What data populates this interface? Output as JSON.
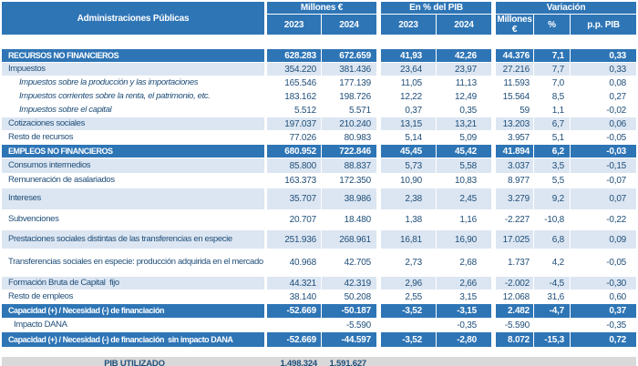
{
  "colors": {
    "header_blue": "#2e75b6",
    "shaded_row": "#dce6f2",
    "text_navy": "#1f4e79",
    "footer_gray": "#d9d9d9"
  },
  "header": {
    "label_col": "Administraciones Públicas",
    "groups": [
      {
        "label": "Millones €",
        "cols": [
          "2023",
          "2024"
        ]
      },
      {
        "label": "En % del PIB",
        "cols": [
          "2023",
          "2024"
        ]
      },
      {
        "label": "Variación",
        "cols": [
          "Millones €",
          "%",
          "p.p. PIB"
        ]
      }
    ]
  },
  "rows": [
    {
      "label": "RECURSOS NO FINANCIEROS",
      "style": "section",
      "shaded": false,
      "size": "",
      "values": [
        "628.283",
        "672.659",
        "41,93",
        "42,26",
        "44.376",
        "7,1",
        "0,33"
      ]
    },
    {
      "label": "Impuestos",
      "style": "item",
      "shaded": true,
      "size": "",
      "values": [
        "354.220",
        "381.436",
        "23,64",
        "23,97",
        "27.216",
        "7,7",
        "0,33"
      ]
    },
    {
      "label": "Impuestos sobre la producción y las importaciones",
      "style": "sub",
      "shaded": false,
      "size": "",
      "values": [
        "165.546",
        "177.139",
        "11,05",
        "11,13",
        "11.593",
        "7,0",
        "0,08"
      ]
    },
    {
      "label": "Impuestos corrientes sobre la renta, el patrimonio, etc.",
      "style": "sub",
      "shaded": false,
      "size": "",
      "values": [
        "183.162",
        "198.726",
        "12,22",
        "12,49",
        "15.564",
        "8,5",
        "0,27"
      ]
    },
    {
      "label": "Impuestos sobre el capital",
      "style": "sub",
      "shaded": false,
      "size": "",
      "values": [
        "5.512",
        "5.571",
        "0,37",
        "0,35",
        "59",
        "1,1",
        "-0,02"
      ]
    },
    {
      "label": "Cotizaciones sociales",
      "style": "item",
      "shaded": true,
      "size": "",
      "values": [
        "197.037",
        "210.240",
        "13,15",
        "13,21",
        "13.203",
        "6,7",
        "0,06"
      ]
    },
    {
      "label": "Resto de recursos",
      "style": "item",
      "shaded": false,
      "size": "",
      "values": [
        "77.026",
        "80.983",
        "5,14",
        "5,09",
        "3.957",
        "5,1",
        "-0,05"
      ]
    },
    {
      "label": "EMPLEOS NO FINANCIEROS",
      "style": "section",
      "shaded": false,
      "size": "",
      "values": [
        "680.952",
        "722.846",
        "45,45",
        "45,42",
        "41.894",
        "6,2",
        "-0,03"
      ]
    },
    {
      "label": "Consumos intermedios",
      "style": "item",
      "shaded": true,
      "size": "h17",
      "values": [
        "85.800",
        "88.837",
        "5,73",
        "5,58",
        "3.037",
        "3,5",
        "-0,15"
      ]
    },
    {
      "label": "Remuneración de asalariados",
      "style": "item",
      "shaded": false,
      "size": "h16",
      "values": [
        "163.373",
        "172.350",
        "10,90",
        "10,83",
        "8.977",
        "5,5",
        "-0,07"
      ]
    },
    {
      "label": "Intereses",
      "style": "item",
      "shaded": true,
      "size": "h24",
      "values": [
        "35.707",
        "38.986",
        "2,38",
        "2,45",
        "3.279",
        "9,2",
        "0,07"
      ]
    },
    {
      "label": "Subvenciones",
      "style": "item",
      "shaded": false,
      "size": "h22",
      "values": [
        "20.707",
        "18.480",
        "1,38",
        "1,16",
        "-2.227",
        "-10,8",
        "-0,22"
      ]
    },
    {
      "label": "Prestaciones sociales distintas de las transferencias en especie",
      "style": "item",
      "shaded": true,
      "size": "h21",
      "values": [
        "251.936",
        "268.961",
        "16,81",
        "16,90",
        "17.025",
        "6,8",
        "0,09"
      ]
    },
    {
      "label": "Transferencias sociales en especie: producción adquirida en el mercado",
      "style": "item",
      "shaded": false,
      "size": "h30",
      "values": [
        "40.968",
        "42.705",
        "2,73",
        "2,68",
        "1.737",
        "4,2",
        "-0,05"
      ]
    },
    {
      "label": "Formación Bruta de Capital  fijo",
      "style": "item",
      "shaded": true,
      "size": "",
      "values": [
        "44.321",
        "42.319",
        "2,96",
        "2,66",
        "-2.002",
        "-4,5",
        "-0,30"
      ]
    },
    {
      "label": "Resto de empleos",
      "style": "item",
      "shaded": false,
      "size": "",
      "values": [
        "38.140",
        "50.208",
        "2,55",
        "3,15",
        "12.068",
        "31,6",
        "0,60"
      ]
    },
    {
      "label": "Capacidad (+) / Necesidad (-) de financiación",
      "style": "section",
      "shaded": false,
      "size": "h16",
      "values": [
        "-52.669",
        "-50.187",
        "-3,52",
        "-3,15",
        "2.482",
        "-4,7",
        "0,37"
      ]
    },
    {
      "label": "Impacto DANA",
      "style": "dana",
      "shaded": false,
      "size": "",
      "values": [
        "",
        "-5.590",
        "",
        "-0,35",
        "-5.590",
        "",
        "-0,35"
      ]
    },
    {
      "label": "Capacidad (+) / Necesidad (-) de financiación  sin impacto DANA",
      "style": "section",
      "shaded": false,
      "size": "h17",
      "values": [
        "-52.669",
        "-44.597",
        "-3,52",
        "-2,80",
        "8.072",
        "-15,3",
        "0,72"
      ]
    }
  ],
  "footer": {
    "label": "PIB UTILIZADO",
    "values": [
      "1.498.324",
      "1.591.627"
    ]
  }
}
